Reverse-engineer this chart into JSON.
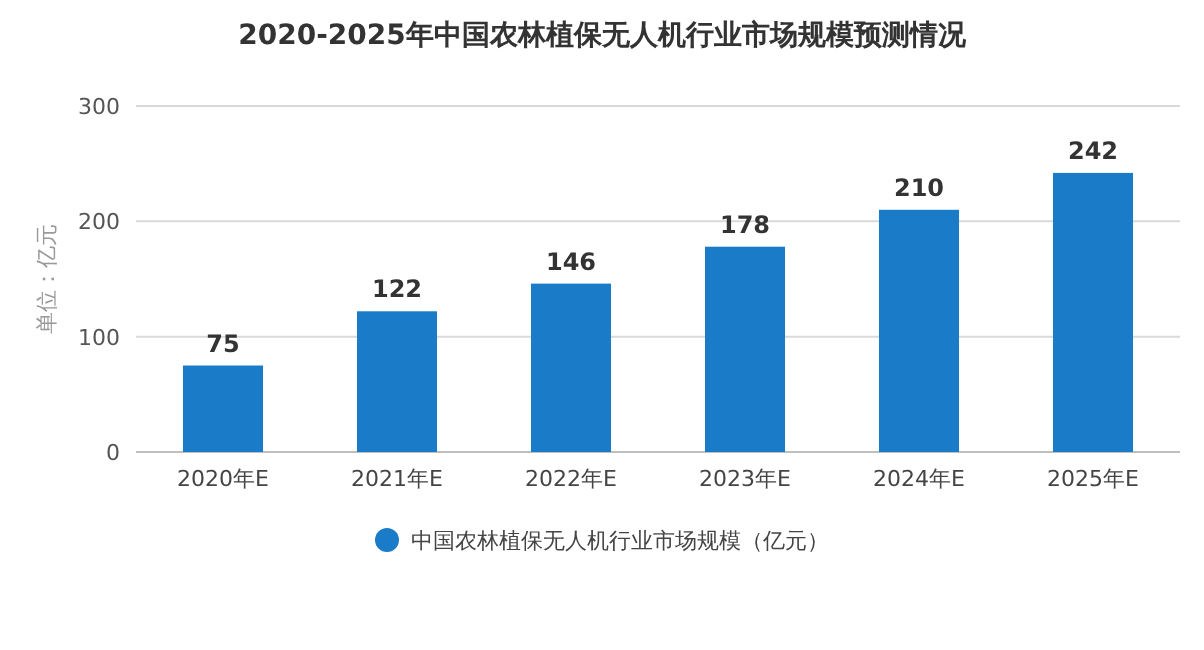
{
  "chart_data": {
    "type": "bar",
    "title": "2020-2025年中国农林植保无人机行业市场规模预测情况",
    "ylabel": "单位：亿元",
    "categories": [
      "2020年E",
      "2021年E",
      "2022年E",
      "2023年E",
      "2024年E",
      "2025年E"
    ],
    "series": [
      {
        "name": "中国农林植保无人机行业市场规模（亿元）",
        "color": "#1a7bc9",
        "values": [
          75,
          122,
          146,
          178,
          210,
          242
        ]
      }
    ],
    "ylim": [
      0,
      300
    ],
    "yticks": [
      0,
      100,
      200,
      300
    ],
    "grid": "y",
    "legend": "bottom",
    "data_labels": true
  }
}
